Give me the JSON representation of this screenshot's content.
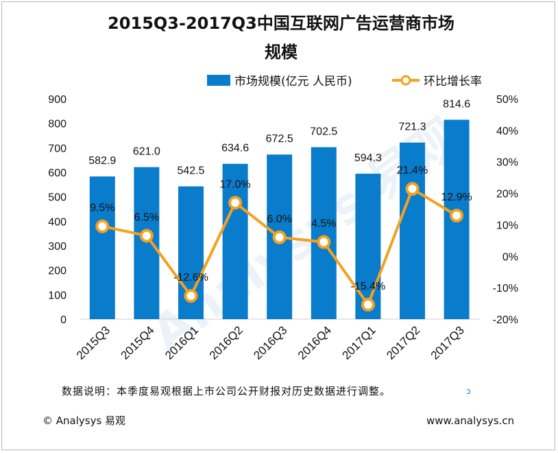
{
  "chart_data": {
    "type": "bar",
    "title_line1": "2015Q3-2017Q3中国互联网广告运营商市场",
    "title_line2": "规模",
    "categories": [
      "2015Q3",
      "2015Q4",
      "2016Q1",
      "2016Q2",
      "2016Q3",
      "2016Q4",
      "2017Q1",
      "2017Q2",
      "2017Q3"
    ],
    "series": [
      {
        "name": "市场规模(亿元 人民币)",
        "type": "bar",
        "axis": "left",
        "color": "#0a7ccc",
        "values": [
          582.9,
          621.0,
          542.5,
          634.6,
          672.5,
          702.5,
          594.3,
          721.3,
          814.6
        ],
        "labels": [
          "582.9",
          "621.0",
          "542.5",
          "634.6",
          "672.5",
          "702.5",
          "594.3",
          "721.3",
          "814.6"
        ]
      },
      {
        "name": "环比增长率",
        "type": "line",
        "axis": "right",
        "color": "#f4a11e",
        "values": [
          9.5,
          6.5,
          -12.6,
          17.0,
          6.0,
          4.5,
          -15.4,
          21.4,
          12.9
        ],
        "labels": [
          "9.5%",
          "6.5%",
          "-12.6%",
          "17.0%",
          "6.0%",
          "4.5%",
          "-15.4%",
          "21.4%",
          "12.9%"
        ]
      }
    ],
    "y_left": {
      "range": [
        0,
        900
      ],
      "ticks": [
        "0",
        "100",
        "200",
        "300",
        "400",
        "500",
        "600",
        "700",
        "800",
        "900"
      ]
    },
    "y_right": {
      "range": [
        -20,
        50
      ],
      "ticks": [
        "-20%",
        "-10%",
        "0%",
        "10%",
        "20%",
        "30%",
        "40%",
        "50%"
      ]
    },
    "legend_position": "top"
  },
  "note": "数据说明：本季度易观根据上市公司公开财报对历史数据进行调整。",
  "footer": {
    "copyright": "© Analysys 易观",
    "website": "www.analysys.cn"
  },
  "watermark": "Analysys 易观"
}
